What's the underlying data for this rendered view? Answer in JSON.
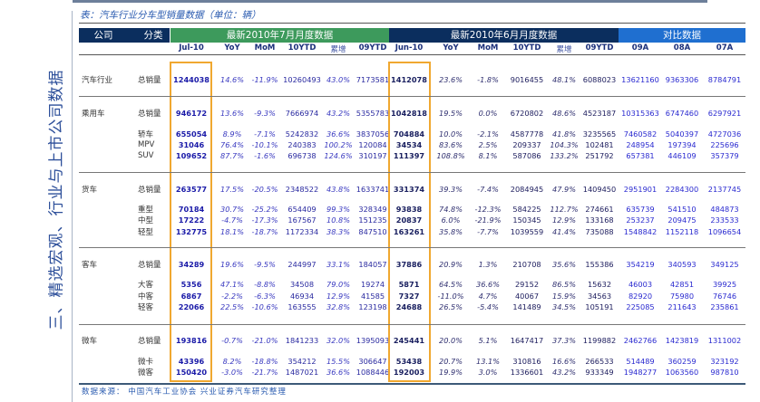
{
  "side_title": "三、精选宏观、行业与上市公司数据",
  "caption": "表：汽车行业分车型销量数据（单位：辆）",
  "header": {
    "company": "公司",
    "category": "分类",
    "group_jul": "最新2010年7月月度数据",
    "group_jun": "最新2010年6月月度数据",
    "group_cmp": "对比数据",
    "columns": [
      "Jul-10",
      "YoY",
      "MoM",
      "10YTD",
      "累增",
      "09YTD",
      "Jun-10",
      "YoY",
      "MoM",
      "10YTD",
      "累增",
      "09YTD",
      "09A",
      "08A",
      "07A"
    ]
  },
  "colors": {
    "navy": "#0b2e5e",
    "green": "#3d9a5c",
    "blue": "#1f6fd0",
    "highlight_box": "#f0a830"
  },
  "rows": [
    {
      "company": "汽车行业",
      "category": "总销量",
      "values": [
        "1244038",
        "14.6%",
        "-11.9%",
        "10260493",
        "43.0%",
        "7173581",
        "1412078",
        "23.6%",
        "-1.8%",
        "9016455",
        "48.1%",
        "6088023",
        "13621160",
        "9363306",
        "8784791"
      ]
    },
    {
      "company": "乘用车",
      "category": "总销量",
      "values": [
        "946172",
        "13.6%",
        "-9.3%",
        "7666974",
        "43.2%",
        "5355783",
        "1042818",
        "19.5%",
        "0.0%",
        "6720802",
        "48.6%",
        "4523187",
        "10315363",
        "6747460",
        "6297921"
      ]
    },
    {
      "company": "",
      "category": "轿车",
      "values": [
        "655054",
        "8.9%",
        "-7.1%",
        "5242832",
        "36.6%",
        "3837056",
        "704884",
        "10.0%",
        "-2.1%",
        "4587778",
        "41.8%",
        "3235565",
        "7460582",
        "5040397",
        "4727036"
      ]
    },
    {
      "company": "",
      "category": "MPV",
      "values": [
        "31046",
        "76.4%",
        "-10.1%",
        "240383",
        "100.2%",
        "120084",
        "34534",
        "83.6%",
        "2.5%",
        "209337",
        "104.3%",
        "102481",
        "248954",
        "197394",
        "225696"
      ]
    },
    {
      "company": "",
      "category": "SUV",
      "values": [
        "109652",
        "87.7%",
        "-1.6%",
        "696738",
        "124.6%",
        "310197",
        "111397",
        "108.8%",
        "8.1%",
        "587086",
        "133.2%",
        "251792",
        "657381",
        "446109",
        "357379"
      ]
    },
    {
      "company": "货车",
      "category": "总销量",
      "values": [
        "263577",
        "17.5%",
        "-20.5%",
        "2348522",
        "43.8%",
        "1633741",
        "331374",
        "39.3%",
        "-7.4%",
        "2084945",
        "47.9%",
        "1409450",
        "2951901",
        "2284300",
        "2137745"
      ]
    },
    {
      "company": "",
      "category": "重型",
      "values": [
        "70184",
        "30.7%",
        "-25.2%",
        "654409",
        "99.3%",
        "328349",
        "93838",
        "74.8%",
        "-12.3%",
        "584225",
        "112.7%",
        "274661",
        "635739",
        "541510",
        "484873"
      ]
    },
    {
      "company": "",
      "category": "中型",
      "values": [
        "17222",
        "-4.7%",
        "-17.3%",
        "167567",
        "10.8%",
        "151235",
        "20837",
        "6.0%",
        "-21.9%",
        "150345",
        "12.9%",
        "133168",
        "253237",
        "209475",
        "233533"
      ]
    },
    {
      "company": "",
      "category": "轻型",
      "values": [
        "132775",
        "18.1%",
        "-18.7%",
        "1172334",
        "38.3%",
        "847510",
        "163261",
        "35.8%",
        "-7.7%",
        "1039559",
        "41.4%",
        "735088",
        "1548842",
        "1152118",
        "1096654"
      ]
    },
    {
      "company": "客车",
      "category": "总销量",
      "values": [
        "34289",
        "19.6%",
        "-9.5%",
        "244997",
        "33.1%",
        "184057",
        "37886",
        "20.9%",
        "1.3%",
        "210708",
        "35.6%",
        "155386",
        "354219",
        "340593",
        "349125"
      ]
    },
    {
      "company": "",
      "category": "大客",
      "values": [
        "5356",
        "47.1%",
        "-8.8%",
        "34508",
        "79.0%",
        "19274",
        "5871",
        "64.5%",
        "36.6%",
        "29152",
        "86.5%",
        "15632",
        "46003",
        "42851",
        "39925"
      ]
    },
    {
      "company": "",
      "category": "中客",
      "values": [
        "6867",
        "-2.2%",
        "-6.3%",
        "46934",
        "12.9%",
        "41585",
        "7327",
        "-11.0%",
        "4.7%",
        "40067",
        "15.9%",
        "34563",
        "82920",
        "75980",
        "76746"
      ]
    },
    {
      "company": "",
      "category": "轻客",
      "values": [
        "22066",
        "22.5%",
        "-10.6%",
        "163555",
        "32.8%",
        "123198",
        "24688",
        "26.5%",
        "-5.4%",
        "141489",
        "34.5%",
        "105191",
        "225085",
        "211643",
        "235861"
      ]
    },
    {
      "company": "微车",
      "category": "总销量",
      "values": [
        "193816",
        "-0.7%",
        "-21.0%",
        "1841233",
        "32.0%",
        "1395093",
        "245441",
        "20.0%",
        "5.1%",
        "1647417",
        "37.3%",
        "1199882",
        "2462766",
        "1423819",
        "1311002"
      ]
    },
    {
      "company": "",
      "category": "微卡",
      "values": [
        "43396",
        "8.2%",
        "-18.8%",
        "354212",
        "15.5%",
        "306647",
        "53438",
        "20.7%",
        "13.1%",
        "310816",
        "16.6%",
        "266533",
        "514489",
        "360259",
        "323192"
      ]
    },
    {
      "company": "",
      "category": "微客",
      "values": [
        "150420",
        "-3.0%",
        "-21.7%",
        "1487021",
        "36.6%",
        "1088446",
        "192003",
        "19.9%",
        "3.0%",
        "1336601",
        "43.2%",
        "933349",
        "1948277",
        "1063560",
        "987810"
      ]
    }
  ],
  "source": "数据来源：  中国汽车工业协会   兴业证券汽车研究整理"
}
